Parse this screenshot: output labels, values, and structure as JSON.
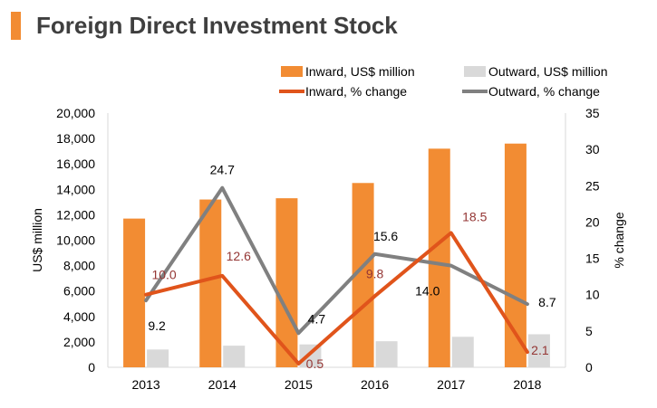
{
  "title": "Foreign Direct Investment Stock",
  "chart_data": {
    "type": "bar",
    "title": "Foreign Direct Investment Stock",
    "categories": [
      "2013",
      "2014",
      "2015",
      "2016",
      "2017",
      "2018"
    ],
    "series": [
      {
        "name": "Inward, US$ million",
        "kind": "bar",
        "axis": "left",
        "color": "#f28c33",
        "values": [
          11700,
          13200,
          13300,
          14500,
          17200,
          17600
        ]
      },
      {
        "name": "Outward, US$ million",
        "kind": "bar",
        "axis": "left",
        "color": "#d9d9d9",
        "values": [
          1400,
          1700,
          1800,
          2050,
          2400,
          2600
        ]
      },
      {
        "name": "Inward, % change",
        "kind": "line",
        "axis": "right",
        "color": "#e0541b",
        "values": [
          10.0,
          12.6,
          0.5,
          9.8,
          18.5,
          2.1
        ],
        "labels": [
          "10.0",
          "12.6",
          "0.5",
          "9.8",
          "18.5",
          "2.1"
        ],
        "label_color": "#943634"
      },
      {
        "name": "Outward, % change",
        "kind": "line",
        "axis": "right",
        "color": "#808080",
        "values": [
          9.2,
          24.7,
          4.7,
          15.6,
          14.0,
          8.7
        ],
        "labels": [
          "9.2",
          "24.7",
          "4.7",
          "15.6",
          "14.0",
          "8.7"
        ],
        "label_color": "#000000"
      }
    ],
    "ylabel": "US$ million",
    "ylabel_right": "% change",
    "ylim": [
      0,
      20000
    ],
    "yticks": [
      "0",
      "2,000",
      "4,000",
      "6,000",
      "8,000",
      "10,000",
      "12,000",
      "14,000",
      "16,000",
      "18,000",
      "20,000"
    ],
    "ylim_right": [
      0,
      35
    ],
    "yticks_right": [
      "0",
      "5",
      "10",
      "15",
      "20",
      "25",
      "30",
      "35"
    ],
    "grid": false,
    "legend_position": "top-right"
  }
}
